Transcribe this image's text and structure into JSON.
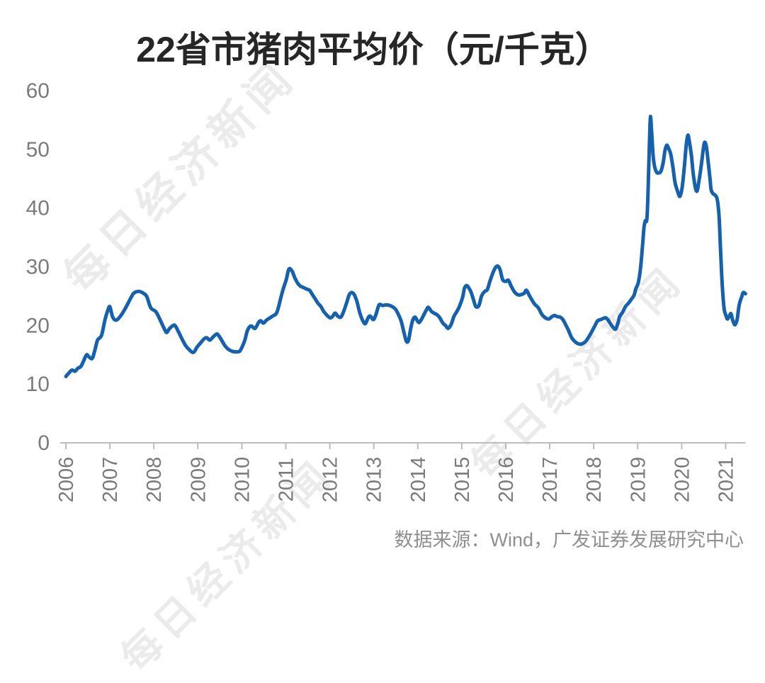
{
  "title": {
    "text": "22省市猪肉平均价（元/千克）",
    "color": "#262626"
  },
  "source_note": {
    "text": "数据来源：Wind，广发证券发展研究中心",
    "color": "#8f8f8f"
  },
  "watermark": {
    "text": "每日经济新闻",
    "color": "rgba(0,0,0,0.078)"
  },
  "chart_data": {
    "type": "line",
    "title": "22省市猪肉平均价（元/千克）",
    "unit": "元/千克",
    "xlabel": "",
    "ylabel": "",
    "grid": false,
    "legend": "none",
    "xticks": [
      2006,
      2007,
      2008,
      2009,
      2010,
      2011,
      2012,
      2013,
      2014,
      2015,
      2016,
      2017,
      2018,
      2019,
      2020,
      2021
    ],
    "yticks": [
      0,
      10,
      20,
      30,
      40,
      50,
      60
    ],
    "ylim": [
      0,
      60
    ],
    "xlim": [
      2005.87,
      2021.45
    ],
    "line_color": "#1561ae",
    "line_width": 5,
    "axis_color": "#bcbcbc",
    "tick_label_color": "#7b7b7b",
    "series": [
      {
        "name": "22省市猪肉平均价",
        "points": [
          [
            2006.0,
            11.3
          ],
          [
            2006.08,
            12.0
          ],
          [
            2006.14,
            12.4
          ],
          [
            2006.21,
            12.2
          ],
          [
            2006.27,
            12.7
          ],
          [
            2006.34,
            13.0
          ],
          [
            2006.4,
            13.9
          ],
          [
            2006.47,
            15.0
          ],
          [
            2006.53,
            14.6
          ],
          [
            2006.6,
            14.4
          ],
          [
            2006.66,
            15.8
          ],
          [
            2006.72,
            17.5
          ],
          [
            2006.81,
            18.3
          ],
          [
            2006.89,
            21.0
          ],
          [
            2006.95,
            22.5
          ],
          [
            2007.0,
            23.2
          ],
          [
            2007.06,
            21.5
          ],
          [
            2007.13,
            20.9
          ],
          [
            2007.21,
            21.3
          ],
          [
            2007.32,
            22.5
          ],
          [
            2007.45,
            24.3
          ],
          [
            2007.53,
            25.4
          ],
          [
            2007.59,
            25.7
          ],
          [
            2007.67,
            25.8
          ],
          [
            2007.76,
            25.5
          ],
          [
            2007.84,
            24.9
          ],
          [
            2007.93,
            23.0
          ],
          [
            2008.05,
            22.3
          ],
          [
            2008.17,
            20.5
          ],
          [
            2008.24,
            19.4
          ],
          [
            2008.29,
            18.8
          ],
          [
            2008.35,
            19.4
          ],
          [
            2008.42,
            19.9
          ],
          [
            2008.48,
            20.0
          ],
          [
            2008.56,
            18.9
          ],
          [
            2008.64,
            17.7
          ],
          [
            2008.72,
            16.6
          ],
          [
            2008.8,
            15.9
          ],
          [
            2008.9,
            15.4
          ],
          [
            2008.98,
            16.3
          ],
          [
            2009.06,
            17.0
          ],
          [
            2009.14,
            17.7
          ],
          [
            2009.2,
            17.9
          ],
          [
            2009.27,
            17.5
          ],
          [
            2009.33,
            17.9
          ],
          [
            2009.4,
            18.4
          ],
          [
            2009.45,
            18.5
          ],
          [
            2009.54,
            17.5
          ],
          [
            2009.62,
            16.5
          ],
          [
            2009.7,
            15.9
          ],
          [
            2009.78,
            15.6
          ],
          [
            2009.86,
            15.5
          ],
          [
            2009.95,
            15.6
          ],
          [
            2010.01,
            16.4
          ],
          [
            2010.07,
            17.5
          ],
          [
            2010.12,
            19.0
          ],
          [
            2010.17,
            19.7
          ],
          [
            2010.22,
            19.9
          ],
          [
            2010.3,
            19.5
          ],
          [
            2010.38,
            20.5
          ],
          [
            2010.43,
            20.8
          ],
          [
            2010.49,
            20.4
          ],
          [
            2010.56,
            20.9
          ],
          [
            2010.62,
            21.2
          ],
          [
            2010.7,
            21.6
          ],
          [
            2010.78,
            22.0
          ],
          [
            2010.83,
            23.0
          ],
          [
            2010.88,
            24.5
          ],
          [
            2010.94,
            26.2
          ],
          [
            2011.01,
            27.8
          ],
          [
            2011.07,
            29.6
          ],
          [
            2011.14,
            29.3
          ],
          [
            2011.2,
            28.2
          ],
          [
            2011.27,
            27.2
          ],
          [
            2011.33,
            26.7
          ],
          [
            2011.39,
            26.5
          ],
          [
            2011.47,
            26.2
          ],
          [
            2011.54,
            26.0
          ],
          [
            2011.6,
            25.3
          ],
          [
            2011.67,
            24.5
          ],
          [
            2011.73,
            23.8
          ],
          [
            2011.8,
            23.2
          ],
          [
            2011.86,
            22.4
          ],
          [
            2011.94,
            21.7
          ],
          [
            2012.01,
            21.3
          ],
          [
            2012.07,
            21.6
          ],
          [
            2012.12,
            22.1
          ],
          [
            2012.18,
            21.6
          ],
          [
            2012.25,
            21.4
          ],
          [
            2012.31,
            22.3
          ],
          [
            2012.38,
            23.8
          ],
          [
            2012.44,
            25.2
          ],
          [
            2012.49,
            25.6
          ],
          [
            2012.55,
            25.3
          ],
          [
            2012.62,
            24.0
          ],
          [
            2012.68,
            22.2
          ],
          [
            2012.75,
            20.8
          ],
          [
            2012.81,
            20.3
          ],
          [
            2012.87,
            21.3
          ],
          [
            2012.92,
            21.6
          ],
          [
            2012.99,
            21.0
          ],
          [
            2013.05,
            21.9
          ],
          [
            2013.12,
            23.5
          ],
          [
            2013.2,
            23.4
          ],
          [
            2013.28,
            23.5
          ],
          [
            2013.36,
            23.4
          ],
          [
            2013.42,
            23.2
          ],
          [
            2013.49,
            22.8
          ],
          [
            2013.55,
            22.0
          ],
          [
            2013.62,
            20.8
          ],
          [
            2013.68,
            19.0
          ],
          [
            2013.74,
            17.3
          ],
          [
            2013.79,
            17.5
          ],
          [
            2013.84,
            19.5
          ],
          [
            2013.89,
            21.0
          ],
          [
            2013.94,
            21.4
          ],
          [
            2013.99,
            20.8
          ],
          [
            2014.03,
            20.5
          ],
          [
            2014.08,
            21.0
          ],
          [
            2014.15,
            22.0
          ],
          [
            2014.2,
            22.7
          ],
          [
            2014.24,
            23.1
          ],
          [
            2014.31,
            22.4
          ],
          [
            2014.37,
            22.1
          ],
          [
            2014.44,
            21.8
          ],
          [
            2014.5,
            21.3
          ],
          [
            2014.57,
            20.4
          ],
          [
            2014.63,
            20.0
          ],
          [
            2014.69,
            19.5
          ],
          [
            2014.76,
            20.2
          ],
          [
            2014.82,
            21.5
          ],
          [
            2014.89,
            22.4
          ],
          [
            2014.95,
            23.3
          ],
          [
            2015.02,
            24.8
          ],
          [
            2015.06,
            26.3
          ],
          [
            2015.11,
            26.8
          ],
          [
            2015.16,
            26.4
          ],
          [
            2015.21,
            25.7
          ],
          [
            2015.27,
            24.3
          ],
          [
            2015.32,
            23.2
          ],
          [
            2015.39,
            23.4
          ],
          [
            2015.45,
            25.0
          ],
          [
            2015.52,
            25.8
          ],
          [
            2015.58,
            26.1
          ],
          [
            2015.64,
            27.5
          ],
          [
            2015.71,
            29.0
          ],
          [
            2015.77,
            29.9
          ],
          [
            2015.82,
            30.1
          ],
          [
            2015.87,
            29.5
          ],
          [
            2015.93,
            27.8
          ],
          [
            2016.0,
            27.5
          ],
          [
            2016.06,
            27.7
          ],
          [
            2016.13,
            26.6
          ],
          [
            2016.21,
            25.6
          ],
          [
            2016.29,
            25.2
          ],
          [
            2016.37,
            25.3
          ],
          [
            2016.42,
            25.5
          ],
          [
            2016.47,
            26.0
          ],
          [
            2016.53,
            25.2
          ],
          [
            2016.59,
            24.4
          ],
          [
            2016.66,
            23.6
          ],
          [
            2016.74,
            23.0
          ],
          [
            2016.82,
            21.9
          ],
          [
            2016.9,
            21.3
          ],
          [
            2016.98,
            21.1
          ],
          [
            2017.05,
            21.5
          ],
          [
            2017.11,
            21.7
          ],
          [
            2017.17,
            21.5
          ],
          [
            2017.24,
            21.4
          ],
          [
            2017.3,
            21.0
          ],
          [
            2017.37,
            20.0
          ],
          [
            2017.43,
            19.1
          ],
          [
            2017.5,
            17.9
          ],
          [
            2017.58,
            17.2
          ],
          [
            2017.64,
            16.9
          ],
          [
            2017.71,
            16.8
          ],
          [
            2017.77,
            17.0
          ],
          [
            2017.83,
            17.4
          ],
          [
            2017.9,
            18.2
          ],
          [
            2017.96,
            19.0
          ],
          [
            2018.03,
            20.0
          ],
          [
            2018.09,
            20.8
          ],
          [
            2018.16,
            21.0
          ],
          [
            2018.22,
            21.2
          ],
          [
            2018.27,
            21.3
          ],
          [
            2018.32,
            21.0
          ],
          [
            2018.38,
            20.3
          ],
          [
            2018.45,
            19.6
          ],
          [
            2018.5,
            19.4
          ],
          [
            2018.55,
            20.4
          ],
          [
            2018.59,
            21.5
          ],
          [
            2018.66,
            22.3
          ],
          [
            2018.72,
            23.2
          ],
          [
            2018.79,
            23.8
          ],
          [
            2018.85,
            24.4
          ],
          [
            2018.92,
            25.2
          ],
          [
            2018.96,
            26.3
          ],
          [
            2019.01,
            27.2
          ],
          [
            2019.06,
            29.5
          ],
          [
            2019.11,
            33.6
          ],
          [
            2019.14,
            36.5
          ],
          [
            2019.17,
            37.8
          ],
          [
            2019.21,
            38.2
          ],
          [
            2019.24,
            44.0
          ],
          [
            2019.27,
            52.0
          ],
          [
            2019.29,
            55.6
          ],
          [
            2019.32,
            52.5
          ],
          [
            2019.35,
            49.0
          ],
          [
            2019.38,
            47.2
          ],
          [
            2019.43,
            46.1
          ],
          [
            2019.48,
            46.0
          ],
          [
            2019.53,
            46.3
          ],
          [
            2019.58,
            47.8
          ],
          [
            2019.62,
            49.8
          ],
          [
            2019.66,
            50.7
          ],
          [
            2019.7,
            50.2
          ],
          [
            2019.75,
            49.2
          ],
          [
            2019.8,
            47.0
          ],
          [
            2019.85,
            44.3
          ],
          [
            2019.91,
            42.8
          ],
          [
            2019.96,
            42.0
          ],
          [
            2020.01,
            43.5
          ],
          [
            2020.06,
            47.0
          ],
          [
            2020.1,
            50.5
          ],
          [
            2020.14,
            52.4
          ],
          [
            2020.17,
            51.5
          ],
          [
            2020.22,
            49.0
          ],
          [
            2020.26,
            46.0
          ],
          [
            2020.31,
            43.5
          ],
          [
            2020.35,
            42.9
          ],
          [
            2020.39,
            44.5
          ],
          [
            2020.44,
            47.0
          ],
          [
            2020.49,
            50.0
          ],
          [
            2020.52,
            51.2
          ],
          [
            2020.56,
            50.5
          ],
          [
            2020.6,
            48.0
          ],
          [
            2020.64,
            45.3
          ],
          [
            2020.67,
            43.1
          ],
          [
            2020.72,
            42.4
          ],
          [
            2020.76,
            42.2
          ],
          [
            2020.81,
            41.4
          ],
          [
            2020.85,
            38.5
          ],
          [
            2020.88,
            33.5
          ],
          [
            2020.91,
            28.5
          ],
          [
            2020.94,
            24.8
          ],
          [
            2020.97,
            22.6
          ],
          [
            2021.01,
            21.6
          ],
          [
            2021.04,
            21.1
          ],
          [
            2021.09,
            21.7
          ],
          [
            2021.12,
            22.0
          ],
          [
            2021.16,
            20.9
          ],
          [
            2021.21,
            20.1
          ],
          [
            2021.26,
            21.0
          ],
          [
            2021.29,
            22.7
          ],
          [
            2021.32,
            23.9
          ],
          [
            2021.36,
            24.8
          ],
          [
            2021.4,
            25.6
          ],
          [
            2021.45,
            25.4
          ]
        ]
      }
    ]
  }
}
